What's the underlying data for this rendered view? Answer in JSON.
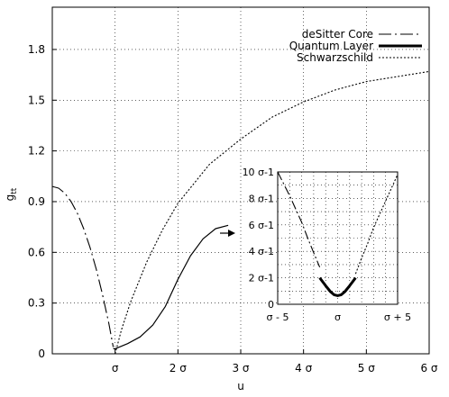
{
  "chart_data": {
    "type": "line",
    "xlabel": "u",
    "ylabel": "g",
    "ylabel_sub": "tt",
    "xlim": [
      0,
      6
    ],
    "ylim": [
      0,
      2.05
    ],
    "grid": true,
    "legend_position": "top-right",
    "x_ticks": [
      {
        "value": 1,
        "label": "σ"
      },
      {
        "value": 2,
        "label": "2 σ"
      },
      {
        "value": 3,
        "label": "3 σ"
      },
      {
        "value": 4,
        "label": "4 σ"
      },
      {
        "value": 5,
        "label": "5 σ"
      },
      {
        "value": 6,
        "label": "6 σ"
      }
    ],
    "y_ticks": [
      {
        "value": 0,
        "label": "0"
      },
      {
        "value": 0.3,
        "label": "0.3"
      },
      {
        "value": 0.6,
        "label": "0.6"
      },
      {
        "value": 0.9,
        "label": "0.9"
      },
      {
        "value": 1.2,
        "label": "1.2"
      },
      {
        "value": 1.5,
        "label": "1.5"
      },
      {
        "value": 1.8,
        "label": "1.8"
      }
    ],
    "series": [
      {
        "name": "deSitter Core",
        "style": "dash-dot",
        "x": [
          0,
          0.1,
          0.2,
          0.3,
          0.4,
          0.5,
          0.6,
          0.7,
          0.8,
          0.9,
          0.97
        ],
        "y": [
          0.99,
          0.98,
          0.95,
          0.9,
          0.83,
          0.74,
          0.63,
          0.5,
          0.35,
          0.18,
          0.04
        ]
      },
      {
        "name": "Quantum Layer",
        "style": "solid",
        "x": [
          0.97,
          1.0,
          1.2,
          1.4,
          1.6,
          1.8,
          2.0,
          2.2,
          2.4,
          2.6,
          2.8
        ],
        "y": [
          0.03,
          0.03,
          0.06,
          0.1,
          0.17,
          0.28,
          0.44,
          0.58,
          0.68,
          0.74,
          0.76
        ]
      },
      {
        "name": "Schwarzschild",
        "style": "dotted",
        "x": [
          1.0,
          1.1,
          1.25,
          1.5,
          1.75,
          2.0,
          2.5,
          3.0,
          3.5,
          4.0,
          4.5,
          5.0,
          5.5,
          6.0
        ],
        "y": [
          0.0,
          0.14,
          0.31,
          0.54,
          0.73,
          0.89,
          1.12,
          1.27,
          1.4,
          1.49,
          1.56,
          1.61,
          1.64,
          1.67
        ]
      }
    ],
    "inset": {
      "xlim": [
        -5,
        5
      ],
      "ylim": [
        0,
        10
      ],
      "x_ticks": [
        {
          "value": -5,
          "label": "σ - 5"
        },
        {
          "value": 0,
          "label": "σ"
        },
        {
          "value": 5,
          "label": "σ + 5"
        }
      ],
      "y_ticks": [
        {
          "value": 0,
          "label": "0"
        },
        {
          "value": 2,
          "label": "2 σ-1"
        },
        {
          "value": 4,
          "label": "4 σ-1"
        },
        {
          "value": 6,
          "label": "6 σ-1"
        },
        {
          "value": 8,
          "label": "8 σ-1"
        },
        {
          "value": 10,
          "label": "10 σ-1"
        }
      ],
      "series": [
        {
          "name": "deSitter Core",
          "style": "dash-dot",
          "x": [
            -5,
            -4,
            -3,
            -2.5,
            -2,
            -1.5
          ],
          "y": [
            10,
            8.2,
            6.2,
            5.0,
            3.9,
            2.8
          ]
        },
        {
          "name": "Quantum Layer",
          "style": "solid",
          "x": [
            -1.5,
            -1.0,
            -0.6,
            -0.3,
            0,
            0.3,
            0.6,
            1.0,
            1.5
          ],
          "y": [
            2.0,
            1.4,
            0.95,
            0.72,
            0.65,
            0.72,
            0.95,
            1.4,
            2.0
          ]
        },
        {
          "name": "Schwarzschild",
          "style": "dotted",
          "x": [
            1.5,
            2,
            2.5,
            3,
            4,
            5
          ],
          "y": [
            2.3,
            3.5,
            4.6,
            5.8,
            7.8,
            9.8
          ]
        }
      ]
    }
  }
}
